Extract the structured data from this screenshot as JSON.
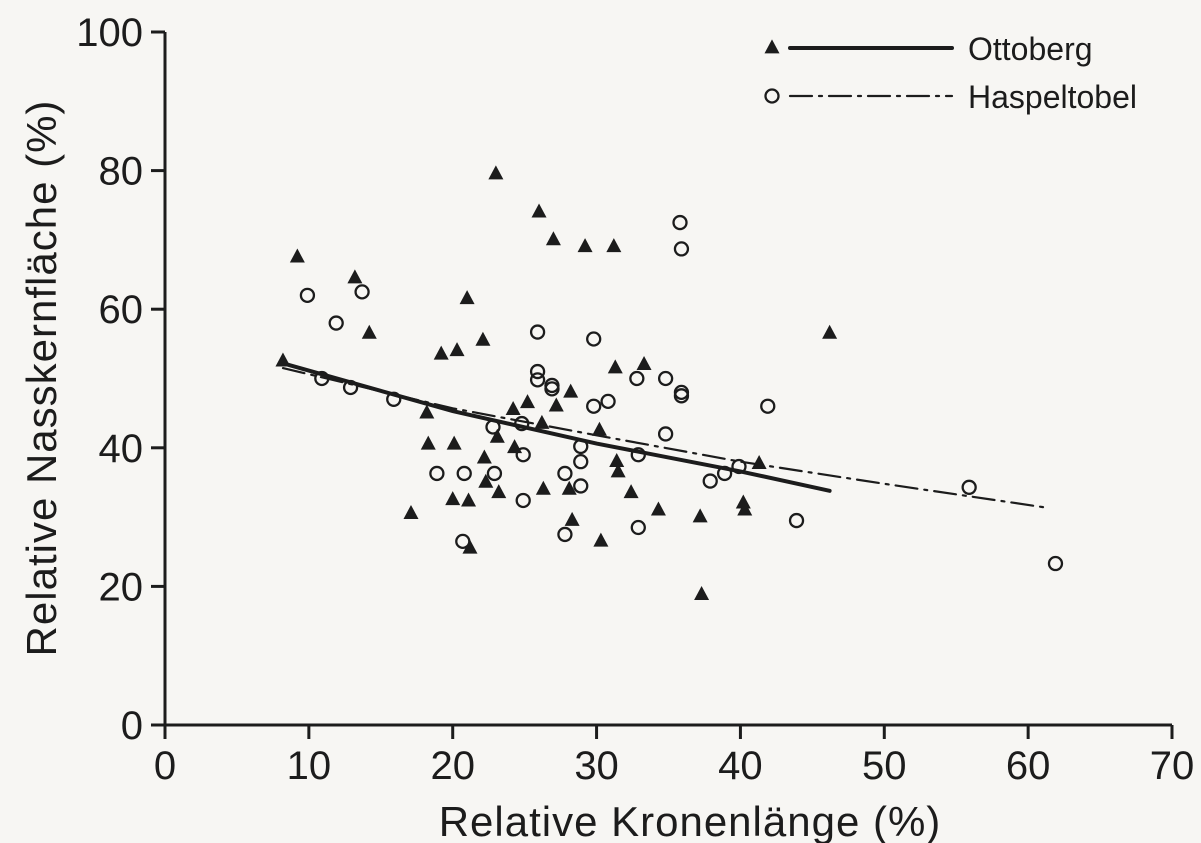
{
  "chart_data": {
    "type": "scatter",
    "title": "",
    "xlabel": "Relative Kronenlänge (%)",
    "ylabel": "Relative Nasskernfläche (%)",
    "xlim": [
      0,
      70
    ],
    "ylim": [
      0,
      100
    ],
    "xticks": [
      0,
      10,
      20,
      30,
      40,
      50,
      60,
      70
    ],
    "yticks": [
      0,
      20,
      40,
      60,
      80,
      100
    ],
    "grid": false,
    "legend_position": "top-right",
    "colors": {
      "ink": "#1c1c1c",
      "background": "#f7f6f3"
    },
    "series": [
      {
        "name": "Ottoberg",
        "marker": "filled-triangle",
        "line_style": "solid",
        "points": [
          [
            8.2,
            52.5
          ],
          [
            9.2,
            67.5
          ],
          [
            13.2,
            64.5
          ],
          [
            14.2,
            56.5
          ],
          [
            17.1,
            30.5
          ],
          [
            18.2,
            45
          ],
          [
            18.3,
            40.5
          ],
          [
            19.2,
            53.5
          ],
          [
            20,
            32.5
          ],
          [
            20.1,
            40.5
          ],
          [
            20.3,
            54
          ],
          [
            21,
            61.5
          ],
          [
            21.1,
            32.3
          ],
          [
            21.2,
            25.5
          ],
          [
            22.1,
            55.5
          ],
          [
            22.2,
            38.5
          ],
          [
            22.3,
            35
          ],
          [
            23,
            79.5
          ],
          [
            23.1,
            41.5
          ],
          [
            23.2,
            33.5
          ],
          [
            24.2,
            45.5
          ],
          [
            24.3,
            40
          ],
          [
            25.2,
            46.5
          ],
          [
            26,
            74
          ],
          [
            26.2,
            43.5
          ],
          [
            26.3,
            34
          ],
          [
            27,
            70
          ],
          [
            27.2,
            46
          ],
          [
            28.2,
            48
          ],
          [
            28.3,
            29.5
          ],
          [
            28.1,
            34
          ],
          [
            29.2,
            69
          ],
          [
            30.2,
            42.5
          ],
          [
            30.3,
            26.5
          ],
          [
            31.2,
            69
          ],
          [
            31.3,
            51.5
          ],
          [
            31.4,
            38
          ],
          [
            31.5,
            36.5
          ],
          [
            32.4,
            33.5
          ],
          [
            33.3,
            52
          ],
          [
            34.3,
            31
          ],
          [
            37.2,
            30
          ],
          [
            37.3,
            18.8
          ],
          [
            40.3,
            31
          ],
          [
            40.2,
            32
          ],
          [
            41.3,
            37.7
          ],
          [
            46.2,
            56.5
          ]
        ],
        "fit": [
          [
            8.2,
            52.2
          ],
          [
            20,
            45.3
          ],
          [
            30,
            40.6
          ],
          [
            40,
            36.6
          ],
          [
            46.2,
            33.8
          ]
        ]
      },
      {
        "name": "Haspeltobel",
        "marker": "open-circle",
        "line_style": "dash-dot",
        "points": [
          [
            9.9,
            62
          ],
          [
            10.9,
            50
          ],
          [
            11.9,
            58
          ],
          [
            12.9,
            48.7
          ],
          [
            13.7,
            62.5
          ],
          [
            15.9,
            47
          ],
          [
            18.9,
            36.3
          ],
          [
            20.7,
            26.5
          ],
          [
            20.8,
            36.3
          ],
          [
            22.8,
            43
          ],
          [
            22.9,
            36.3
          ],
          [
            24.8,
            43.5
          ],
          [
            24.9,
            32.4
          ],
          [
            24.9,
            39
          ],
          [
            25.9,
            51
          ],
          [
            25.9,
            56.7
          ],
          [
            25.9,
            49.8
          ],
          [
            26.9,
            48.5
          ],
          [
            26.9,
            49
          ],
          [
            27.8,
            36.3
          ],
          [
            27.8,
            27.5
          ],
          [
            28.9,
            40.2
          ],
          [
            28.9,
            38
          ],
          [
            28.9,
            34.5
          ],
          [
            29.8,
            55.7
          ],
          [
            29.8,
            46
          ],
          [
            30.8,
            46.7
          ],
          [
            32.8,
            50
          ],
          [
            32.9,
            28.5
          ],
          [
            32.9,
            39
          ],
          [
            34.8,
            50
          ],
          [
            34.8,
            42
          ],
          [
            35.8,
            72.5
          ],
          [
            35.9,
            68.7
          ],
          [
            35.9,
            48
          ],
          [
            35.9,
            47.5
          ],
          [
            37.9,
            35.2
          ],
          [
            38.9,
            36.3
          ],
          [
            39.9,
            37.3
          ],
          [
            41.9,
            46
          ],
          [
            43.9,
            29.5
          ],
          [
            55.9,
            34.3
          ],
          [
            61.9,
            23.3
          ]
        ],
        "fit": [
          [
            8.2,
            51.5
          ],
          [
            20,
            45.7
          ],
          [
            30,
            41.8
          ],
          [
            40,
            38
          ],
          [
            50,
            34.8
          ],
          [
            61.5,
            31.3
          ]
        ]
      }
    ]
  }
}
